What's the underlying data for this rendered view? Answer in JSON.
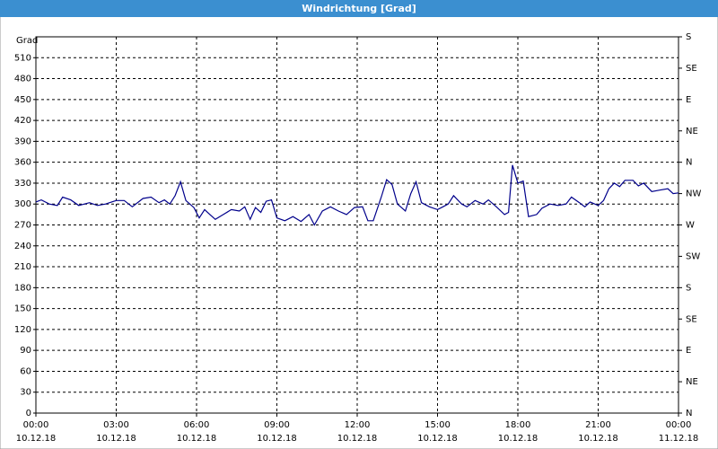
{
  "chart_data": {
    "type": "line",
    "title": "Windrichtung [Grad]",
    "y_label": "Grad",
    "xlim": [
      0,
      24
    ],
    "xticks": [
      {
        "value": 0,
        "label": "00:00",
        "date": "10.12.18"
      },
      {
        "value": 3,
        "label": "03:00",
        "date": "10.12.18"
      },
      {
        "value": 6,
        "label": "06:00",
        "date": "10.12.18"
      },
      {
        "value": 9,
        "label": "09:00",
        "date": "10.12.18"
      },
      {
        "value": 12,
        "label": "12:00",
        "date": "10.12.18"
      },
      {
        "value": 15,
        "label": "15:00",
        "date": "10.12.18"
      },
      {
        "value": 18,
        "label": "18:00",
        "date": "10.12.18"
      },
      {
        "value": 21,
        "label": "21:00",
        "date": "10.12.18"
      },
      {
        "value": 24,
        "label": "00:00",
        "date": "11.12.18"
      }
    ],
    "ylim": [
      0,
      540
    ],
    "yticks": [
      0,
      30,
      60,
      90,
      120,
      150,
      180,
      210,
      240,
      270,
      300,
      330,
      360,
      390,
      420,
      450,
      480,
      510
    ],
    "y2lim": [
      0,
      540
    ],
    "y2ticks": [
      {
        "value": 0,
        "label": "N"
      },
      {
        "value": 45,
        "label": "NE"
      },
      {
        "value": 90,
        "label": "E"
      },
      {
        "value": 135,
        "label": "SE"
      },
      {
        "value": 180,
        "label": "S"
      },
      {
        "value": 225,
        "label": "SW"
      },
      {
        "value": 270,
        "label": "W"
      },
      {
        "value": 315,
        "label": "NW"
      },
      {
        "value": 360,
        "label": "N"
      },
      {
        "value": 405,
        "label": "NE"
      },
      {
        "value": 450,
        "label": "E"
      },
      {
        "value": 495,
        "label": "SE"
      },
      {
        "value": 540,
        "label": "S"
      }
    ],
    "grid": true,
    "series": [
      {
        "color": "#00008b",
        "x": [
          0,
          0.2,
          0.5,
          0.8,
          1.0,
          1.3,
          1.6,
          2.0,
          2.3,
          2.6,
          3.0,
          3.3,
          3.6,
          4.0,
          4.3,
          4.6,
          4.8,
          5.0,
          5.2,
          5.4,
          5.6,
          5.9,
          6.1,
          6.3,
          6.5,
          6.7,
          7.0,
          7.3,
          7.6,
          7.8,
          8.0,
          8.2,
          8.4,
          8.6,
          8.8,
          9.0,
          9.3,
          9.6,
          9.9,
          10.2,
          10.4,
          10.7,
          11.0,
          11.3,
          11.6,
          11.9,
          12.2,
          12.4,
          12.6,
          12.9,
          13.1,
          13.3,
          13.5,
          13.8,
          14.0,
          14.2,
          14.4,
          14.7,
          15.0,
          15.2,
          15.4,
          15.6,
          15.9,
          16.1,
          16.4,
          16.7,
          16.9,
          17.2,
          17.5,
          17.65,
          17.8,
          18.0,
          18.2,
          18.4,
          18.7,
          18.9,
          19.2,
          19.5,
          19.8,
          20.0,
          20.3,
          20.5,
          20.7,
          21.0,
          21.2,
          21.4,
          21.6,
          21.8,
          22.0,
          22.3,
          22.5,
          22.7,
          23.0,
          23.3,
          23.6,
          23.8,
          24.0
        ],
        "values": [
          303,
          306,
          300,
          298,
          310,
          306,
          298,
          302,
          298,
          300,
          305,
          305,
          296,
          308,
          310,
          302,
          306,
          300,
          312,
          332,
          305,
          295,
          280,
          292,
          285,
          278,
          285,
          292,
          290,
          296,
          278,
          295,
          288,
          304,
          306,
          280,
          276,
          282,
          275,
          285,
          270,
          290,
          296,
          290,
          285,
          295,
          296,
          276,
          276,
          310,
          335,
          328,
          300,
          290,
          315,
          332,
          302,
          296,
          292,
          296,
          300,
          312,
          300,
          296,
          305,
          300,
          306,
          296,
          285,
          288,
          356,
          330,
          333,
          282,
          285,
          294,
          300,
          298,
          300,
          310,
          302,
          296,
          303,
          298,
          305,
          322,
          330,
          325,
          334,
          334,
          326,
          330,
          318,
          320,
          322,
          315,
          316
        ]
      }
    ]
  }
}
